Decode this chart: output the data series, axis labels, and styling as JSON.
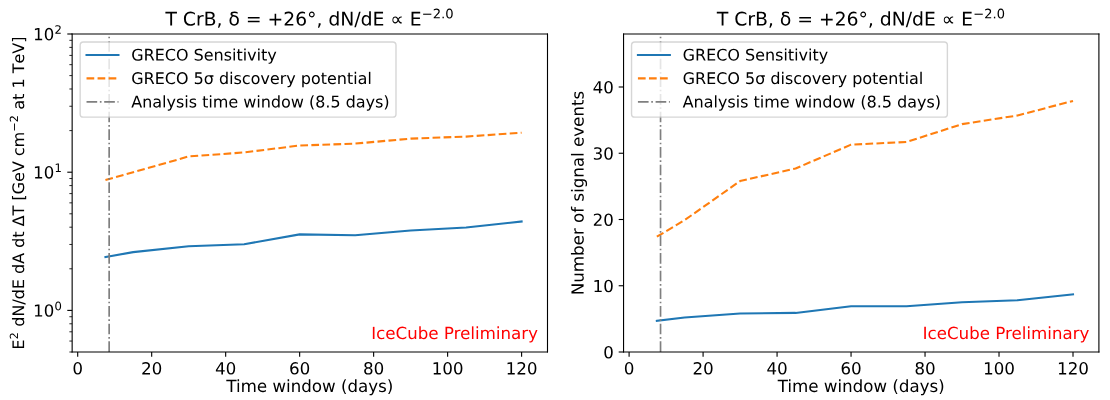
{
  "chart_data": [
    {
      "type": "line",
      "title": "T CrB, δ = +26°, dN/dE ∝ E$^{−2.0}$",
      "xlabel": "Time window (days)",
      "ylabel": "E$^{2}$ dN/dE dA dt ΔT [GeV cm$^{−2}$ at 1 TeV]",
      "x": [
        7.5,
        15,
        30,
        45,
        60,
        75,
        90,
        105,
        120
      ],
      "series": [
        {
          "name": "GRECO Sensitivity",
          "color": "#1f77b4",
          "line_style": "solid",
          "values": [
            2.43,
            2.64,
            2.91,
            3.01,
            3.55,
            3.5,
            3.79,
            3.98,
            4.4
          ]
        },
        {
          "name": "GRECO 5σ discovery potential",
          "color": "#ff7f0e",
          "line_style": "dashed",
          "values": [
            8.77,
            10,
            13,
            13.9,
            15.6,
            16.1,
            17.5,
            18.1,
            19.3
          ]
        }
      ],
      "ref_lines": [
        {
          "axis": "x",
          "value": 8.5,
          "label": "Analysis time window (8.5 days)",
          "color": "#7f7f7f",
          "line_style": "dashdot"
        }
      ],
      "annotations": [
        "IceCube Preliminary"
      ],
      "log": "y",
      "xlim": [
        -1.5,
        127
      ],
      "ylim": [
        0.5,
        100
      ],
      "xticks": [
        0,
        20,
        40,
        60,
        80,
        100,
        120
      ],
      "yticks": [
        {
          "value": 1,
          "label": "10$^{0}$"
        },
        {
          "value": 10,
          "label": "10$^{1}$"
        },
        {
          "value": 100,
          "label": "10$^{2}$"
        }
      ],
      "legend": "top left",
      "grid": false
    },
    {
      "type": "line",
      "title": "T CrB, δ = +26°, dN/dE ∝ E$^{−2.0}$",
      "xlabel": "Time window (days)",
      "ylabel": "Number of signal events",
      "x": [
        7.5,
        15,
        30,
        45,
        60,
        75,
        90,
        105,
        120
      ],
      "series": [
        {
          "name": "GRECO Sensitivity",
          "color": "#1f77b4",
          "line_style": "solid",
          "values": [
            4.7,
            5.2,
            5.8,
            5.9,
            6.9,
            6.9,
            7.5,
            7.8,
            8.7
          ]
        },
        {
          "name": "GRECO 5σ discovery potential",
          "color": "#ff7f0e",
          "line_style": "dashed",
          "values": [
            17.4,
            19.9,
            25.8,
            27.7,
            31.3,
            31.7,
            34.4,
            35.7,
            37.9
          ]
        }
      ],
      "ref_lines": [
        {
          "axis": "x",
          "value": 8.5,
          "label": "Analysis time window (8.5 days)",
          "color": "#7f7f7f",
          "line_style": "dashdot"
        }
      ],
      "annotations": [
        "IceCube Preliminary"
      ],
      "xlim": [
        -1.5,
        127
      ],
      "ylim": [
        0,
        48
      ],
      "xticks": [
        0,
        20,
        40,
        60,
        80,
        100,
        120
      ],
      "yticks": [
        0,
        10,
        20,
        30,
        40
      ],
      "legend": "top left",
      "grid": false
    }
  ]
}
